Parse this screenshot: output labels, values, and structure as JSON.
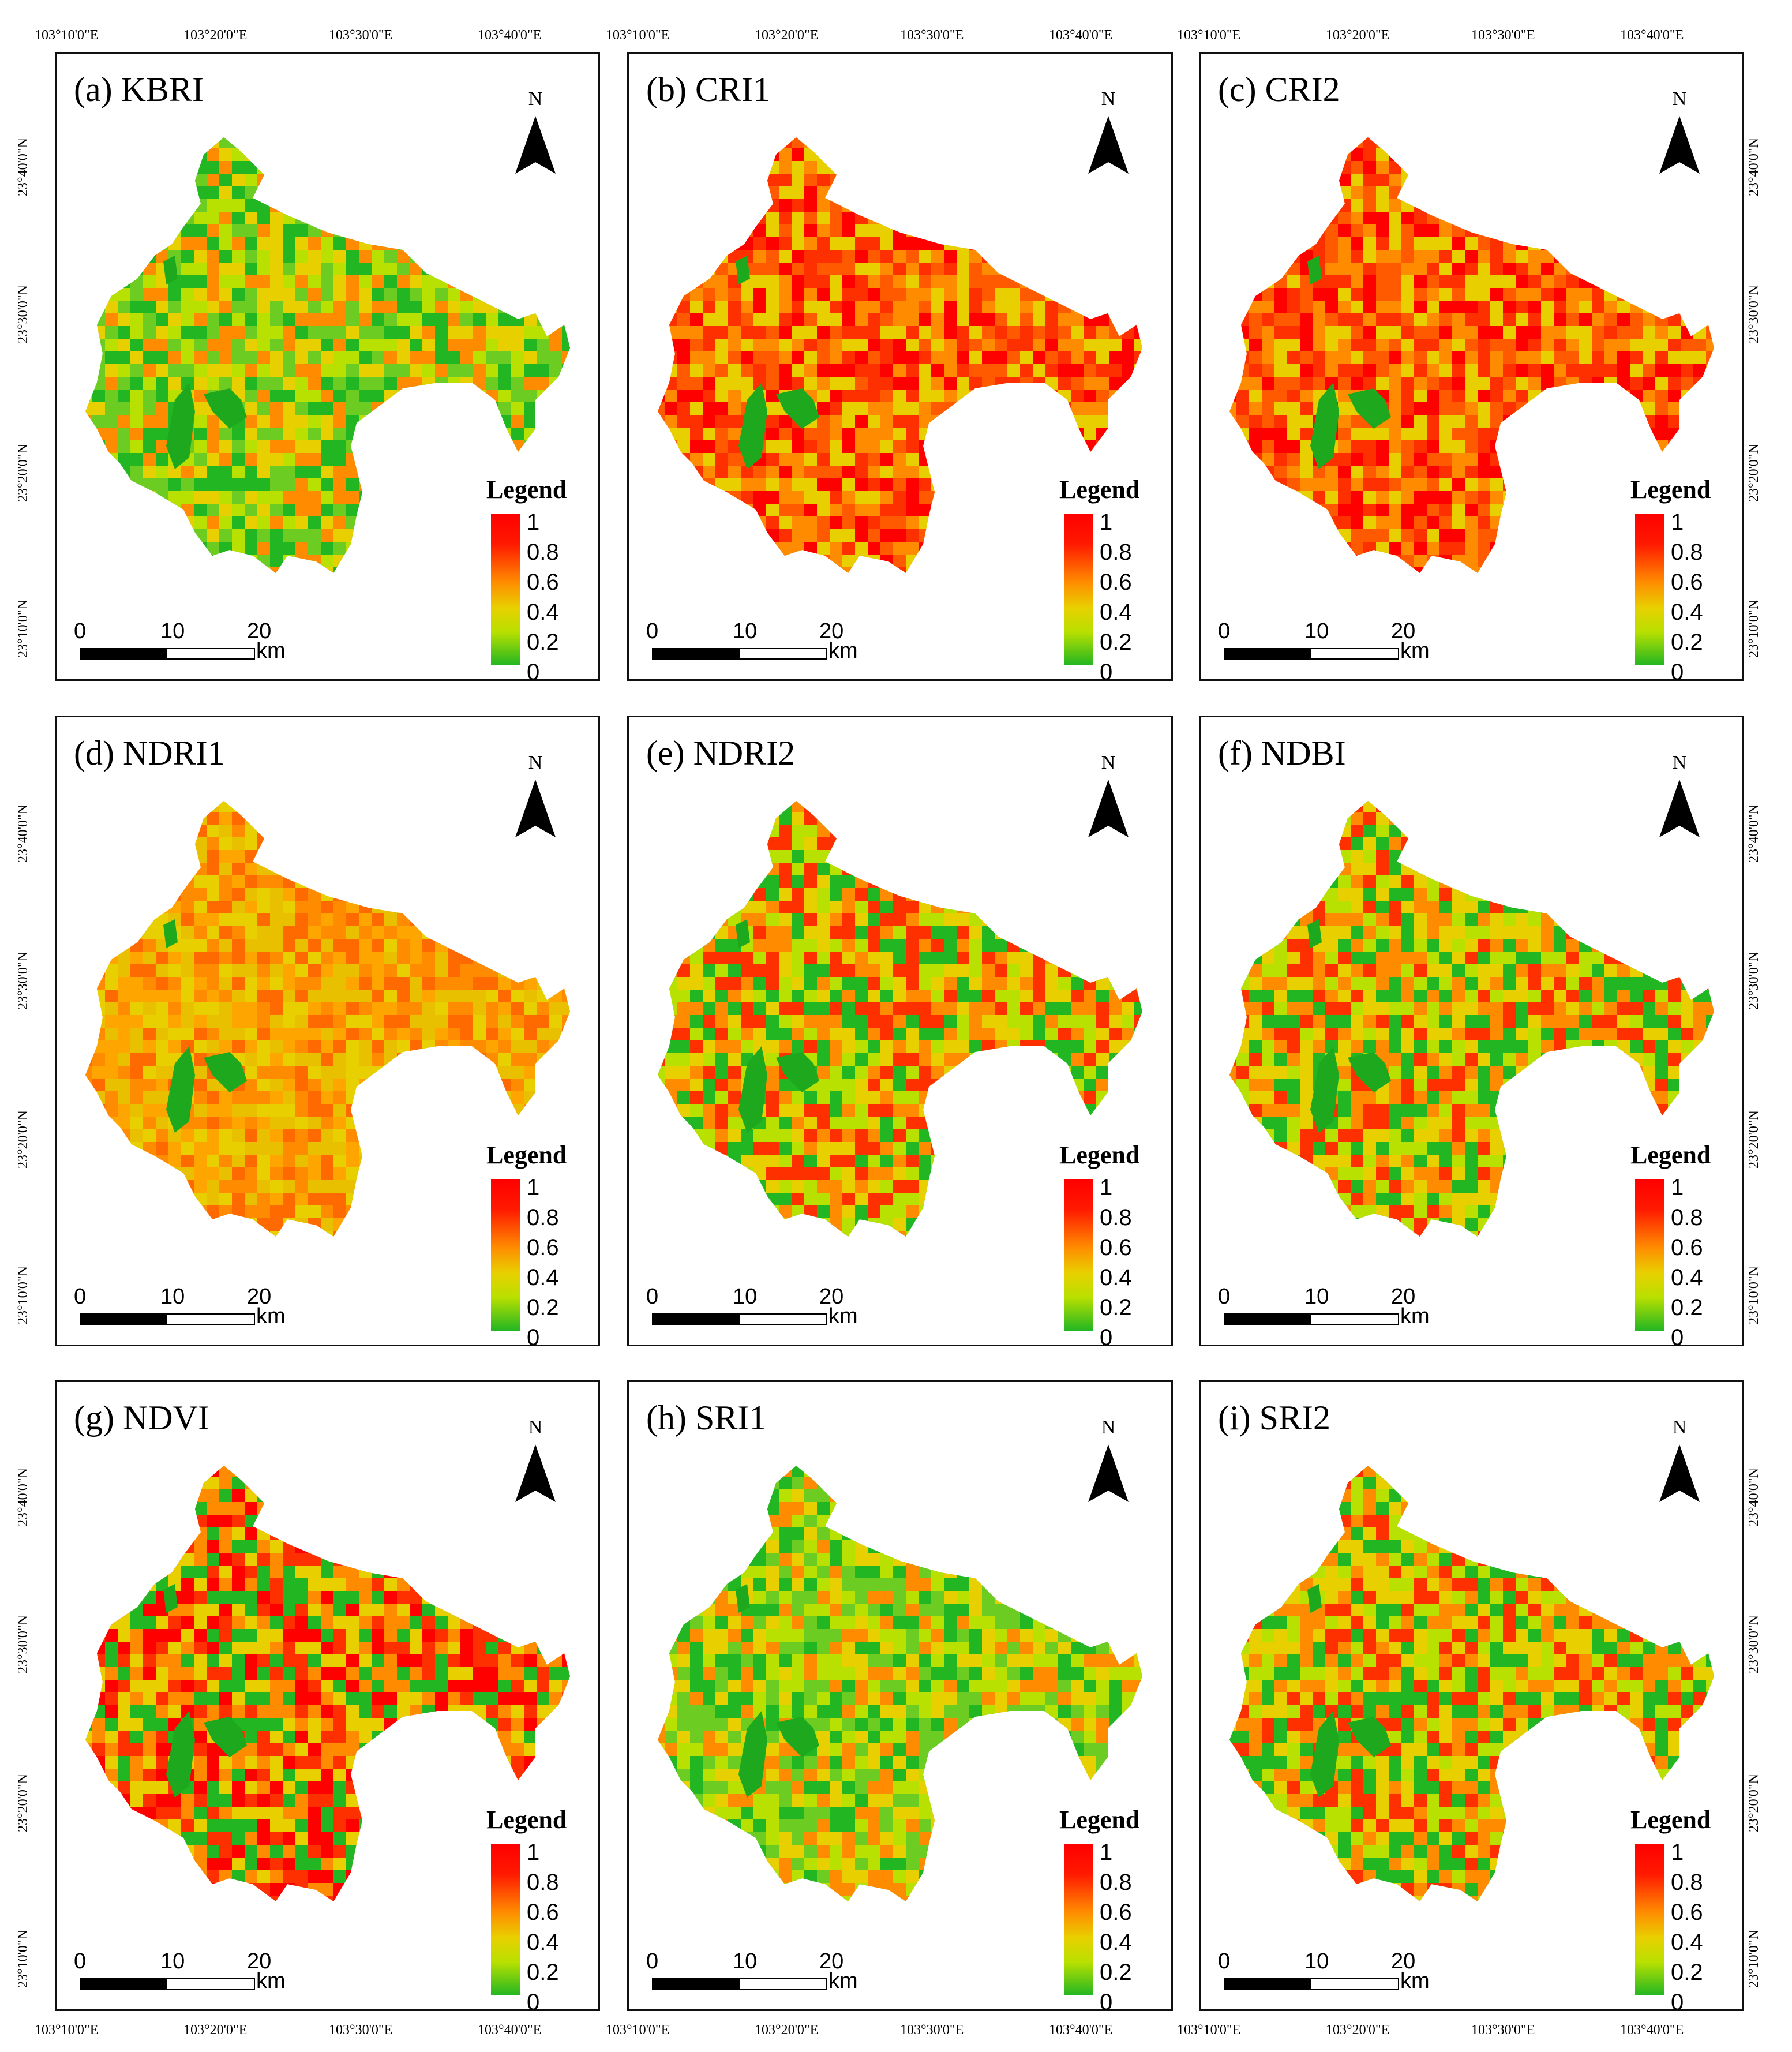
{
  "panels": [
    {
      "title": "(a) KBRI",
      "palette": "kbri"
    },
    {
      "title": "(b) CRI1",
      "palette": "cri"
    },
    {
      "title": "(c) CRI2",
      "palette": "cri"
    },
    {
      "title": "(d) NDRI1",
      "palette": "ndri1"
    },
    {
      "title": "(e) NDRI2",
      "palette": "mixed"
    },
    {
      "title": "(f) NDBI",
      "palette": "mixed"
    },
    {
      "title": "(g) NDVI",
      "palette": "ndvi"
    },
    {
      "title": "(h) SRI1",
      "palette": "sri1"
    },
    {
      "title": "(i) SRI2",
      "palette": "mixed"
    }
  ],
  "north_label": "N",
  "legend": {
    "title": "Legend",
    "ticks": [
      "1",
      "0.8",
      "0.6",
      "0.4",
      "0.2",
      "0"
    ],
    "colors": {
      "high": "#ff0000",
      "mid": "#ff8c00",
      "low_mid": "#e8d000",
      "low": "#22b622"
    }
  },
  "scale_bar": {
    "labels": [
      "0",
      "10",
      "20"
    ],
    "unit": "km"
  },
  "coords": {
    "lon": [
      "103°10'0\"E",
      "103°20'0\"E",
      "103°30'0\"E",
      "103°40'0\"E"
    ],
    "lat": [
      "23°40'0\"N",
      "23°30'0\"N",
      "23°20'0\"N",
      "23°10'0\"N"
    ]
  }
}
